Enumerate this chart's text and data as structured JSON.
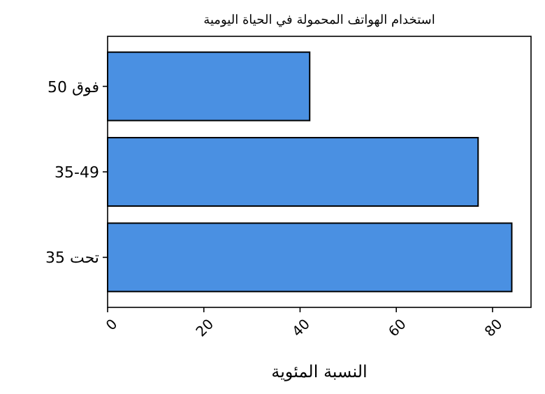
{
  "chart_data": {
    "type": "bar",
    "orientation": "horizontal",
    "title": "استخدام الهواتف المحمولة في الحياة اليومية",
    "xlabel": "النسبة المئوية",
    "categories": [
      "فوق 50",
      "35-49",
      "تحت 35"
    ],
    "values": [
      42,
      77,
      84
    ],
    "color": "#4a90e2",
    "xlim": [
      0,
      88
    ],
    "xticks": [
      0,
      20,
      40,
      60,
      80
    ]
  }
}
